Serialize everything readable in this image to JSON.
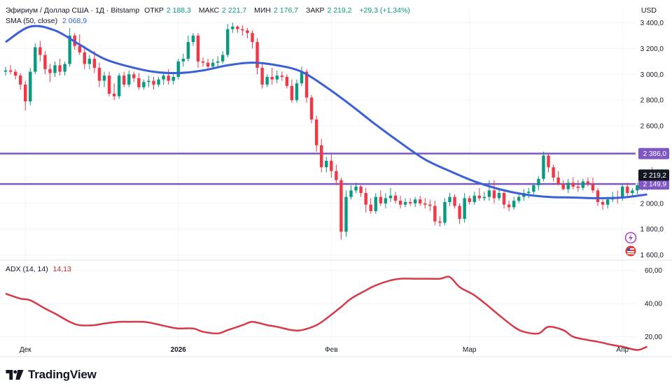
{
  "header": {
    "symbol": "Эфириум / Доллар США · 1Д · Bitstamp",
    "o_label": "ОТКР",
    "o_value": "2 188,3",
    "h_label": "МАКС",
    "h_value": "2 221,7",
    "l_label": "МИН",
    "l_value": "2 176,7",
    "c_label": "ЗАКР",
    "c_value": "2 219,2",
    "change": "+29,3 (+1,34%)",
    "currency": "USD"
  },
  "indicators": {
    "sma_label": "SMA (50, close)",
    "sma_value": "2 068,9",
    "adx_label": "ADX (14, 14)",
    "adx_value": "14,13"
  },
  "footer": {
    "brand": "TradingView"
  },
  "colors": {
    "up": "#089981",
    "down": "#f23645",
    "sma": "#3b5fd4",
    "adx": "#d63a48",
    "level": "#7e57c2",
    "last_price": "#131722",
    "grid": "#f0f3fa"
  },
  "chart_data": {
    "type": "candlestick",
    "title": "Эфириум / Доллар США · 1Д · Bitstamp",
    "currency": "USD",
    "ylim": [
      1560,
      3500
    ],
    "y_ticks": [
      1600,
      1800,
      2000,
      2200,
      2400,
      2600,
      2800,
      3000,
      3200,
      3400
    ],
    "y_tick_labels": [
      "1 600,0",
      "1 800,0",
      "2 000,0",
      "",
      "",
      "2 600,0",
      "2 800,0",
      "3 000,0",
      "3 200,0",
      "3 400,0"
    ],
    "x_ticks": [
      {
        "index": 4,
        "label": "Дек"
      },
      {
        "index": 35,
        "label": "2026"
      },
      {
        "index": 66,
        "label": "Фев"
      },
      {
        "index": 94,
        "label": "Мар"
      },
      {
        "index": 125,
        "label": "Апр"
      }
    ],
    "levels": [
      {
        "value": 2386.0,
        "label": "2 386,0"
      },
      {
        "value": 2149.9,
        "label": "2 149,9"
      }
    ],
    "last_price": {
      "value": 2219.2,
      "label": "2 219,2"
    },
    "ohlc": [
      [
        3020,
        3060,
        2990,
        3030
      ],
      [
        3030,
        3070,
        3000,
        3020
      ],
      [
        3020,
        3040,
        2960,
        2990
      ],
      [
        2990,
        3010,
        2880,
        2920
      ],
      [
        2920,
        2950,
        2720,
        2790
      ],
      [
        2790,
        3050,
        2760,
        3020
      ],
      [
        3020,
        3240,
        3000,
        3210
      ],
      [
        3210,
        3260,
        3100,
        3150
      ],
      [
        3150,
        3180,
        3000,
        3040
      ],
      [
        3040,
        3080,
        2940,
        3010
      ],
      [
        3010,
        3100,
        2980,
        3070
      ],
      [
        3070,
        3120,
        2990,
        3020
      ],
      [
        3020,
        3100,
        2990,
        3080
      ],
      [
        3080,
        3360,
        3060,
        3300
      ],
      [
        3300,
        3320,
        3190,
        3220
      ],
      [
        3220,
        3310,
        3150,
        3170
      ],
      [
        3170,
        3220,
        3040,
        3080
      ],
      [
        3080,
        3150,
        3040,
        3120
      ],
      [
        3120,
        3180,
        3010,
        3050
      ],
      [
        3050,
        3090,
        2900,
        2950
      ],
      [
        2950,
        3020,
        2900,
        2990
      ],
      [
        2990,
        3020,
        2830,
        2850
      ],
      [
        2850,
        2930,
        2800,
        2830
      ],
      [
        2830,
        3010,
        2810,
        2990
      ],
      [
        2990,
        3020,
        2900,
        2920
      ],
      [
        2920,
        3030,
        2900,
        3000
      ],
      [
        3000,
        3020,
        2940,
        2970
      ],
      [
        2970,
        3010,
        2880,
        2900
      ],
      [
        2900,
        2960,
        2880,
        2940
      ],
      [
        2940,
        2990,
        2900,
        2950
      ],
      [
        2950,
        2980,
        2880,
        2920
      ],
      [
        2920,
        2980,
        2900,
        2960
      ],
      [
        2960,
        3020,
        2920,
        2990
      ],
      [
        2990,
        3040,
        2920,
        2950
      ],
      [
        2950,
        3000,
        2920,
        2980
      ],
      [
        2980,
        3120,
        2960,
        3100
      ],
      [
        3100,
        3160,
        3060,
        3120
      ],
      [
        3120,
        3300,
        3100,
        3250
      ],
      [
        3250,
        3320,
        3220,
        3300
      ],
      [
        3300,
        3320,
        3050,
        3100
      ],
      [
        3100,
        3130,
        3060,
        3090
      ],
      [
        3090,
        3120,
        3040,
        3060
      ],
      [
        3060,
        3120,
        3050,
        3090
      ],
      [
        3090,
        3140,
        3050,
        3100
      ],
      [
        3100,
        3180,
        3080,
        3150
      ],
      [
        3150,
        3390,
        3130,
        3350
      ],
      [
        3350,
        3400,
        3320,
        3370
      ],
      [
        3370,
        3380,
        3320,
        3350
      ],
      [
        3350,
        3380,
        3300,
        3340
      ],
      [
        3340,
        3360,
        3280,
        3320
      ],
      [
        3320,
        3340,
        3200,
        3250
      ],
      [
        3250,
        3280,
        3000,
        3050
      ],
      [
        3050,
        3090,
        2890,
        2920
      ],
      [
        2920,
        3000,
        2900,
        2980
      ],
      [
        2980,
        3050,
        2920,
        2960
      ],
      [
        2960,
        3030,
        2930,
        2990
      ],
      [
        2990,
        3020,
        2950,
        2980
      ],
      [
        2980,
        3000,
        2890,
        2910
      ],
      [
        2910,
        2960,
        2780,
        2800
      ],
      [
        2800,
        2960,
        2780,
        2930
      ],
      [
        2930,
        3060,
        2910,
        3020
      ],
      [
        3020,
        3040,
        2780,
        2820
      ],
      [
        2820,
        2840,
        2620,
        2650
      ],
      [
        2650,
        2680,
        2400,
        2450
      ],
      [
        2450,
        2500,
        2240,
        2280
      ],
      [
        2280,
        2360,
        2240,
        2330
      ],
      [
        2330,
        2380,
        2200,
        2250
      ],
      [
        2250,
        2300,
        2140,
        2180
      ],
      [
        2180,
        2200,
        1720,
        1780
      ],
      [
        1780,
        2100,
        1740,
        2050
      ],
      [
        2050,
        2140,
        2030,
        2100
      ],
      [
        2100,
        2160,
        2080,
        2130
      ],
      [
        2130,
        2140,
        2050,
        2080
      ],
      [
        2080,
        2120,
        1930,
        1990
      ],
      [
        1990,
        2040,
        1920,
        1940
      ],
      [
        1940,
        2080,
        1920,
        2050
      ],
      [
        2050,
        2100,
        1980,
        2000
      ],
      [
        2000,
        2080,
        1960,
        2040
      ],
      [
        2040,
        2120,
        2010,
        2060
      ],
      [
        2060,
        2090,
        2000,
        2020
      ],
      [
        2020,
        2060,
        1960,
        1990
      ],
      [
        1990,
        2040,
        1970,
        2010
      ],
      [
        2010,
        2040,
        1980,
        2000
      ],
      [
        2000,
        2050,
        1970,
        2030
      ],
      [
        2030,
        2060,
        1980,
        2000
      ],
      [
        2000,
        2040,
        1960,
        1990
      ],
      [
        1990,
        2030,
        1940,
        1980
      ],
      [
        1980,
        2020,
        1830,
        1860
      ],
      [
        1860,
        1900,
        1820,
        1850
      ],
      [
        1850,
        2040,
        1830,
        2010
      ],
      [
        2010,
        2080,
        1980,
        2050
      ],
      [
        2050,
        2070,
        1960,
        1980
      ],
      [
        1980,
        2000,
        1840,
        1880
      ],
      [
        1880,
        2080,
        1850,
        2040
      ],
      [
        2040,
        2060,
        1990,
        2010
      ],
      [
        2010,
        2090,
        1990,
        2060
      ],
      [
        2060,
        2120,
        2020,
        2040
      ],
      [
        2040,
        2090,
        2020,
        2050
      ],
      [
        2050,
        2180,
        2020,
        2100
      ],
      [
        2100,
        2180,
        2000,
        2040
      ],
      [
        2040,
        2110,
        2020,
        2080
      ],
      [
        2080,
        2110,
        1960,
        1990
      ],
      [
        1990,
        2020,
        1940,
        1970
      ],
      [
        1970,
        2050,
        1950,
        2020
      ],
      [
        2020,
        2080,
        2000,
        2050
      ],
      [
        2050,
        2110,
        2020,
        2080
      ],
      [
        2080,
        2120,
        2040,
        2090
      ],
      [
        2090,
        2150,
        2070,
        2140
      ],
      [
        2140,
        2210,
        2100,
        2190
      ],
      [
        2190,
        2400,
        2170,
        2370
      ],
      [
        2370,
        2380,
        2240,
        2280
      ],
      [
        2280,
        2300,
        2170,
        2200
      ],
      [
        2200,
        2250,
        2140,
        2150
      ],
      [
        2150,
        2180,
        2100,
        2110
      ],
      [
        2110,
        2190,
        2080,
        2160
      ],
      [
        2160,
        2200,
        2110,
        2130
      ],
      [
        2130,
        2180,
        2090,
        2120
      ],
      [
        2120,
        2190,
        2100,
        2170
      ],
      [
        2170,
        2200,
        2130,
        2150
      ],
      [
        2150,
        2200,
        2080,
        2100
      ],
      [
        2100,
        2120,
        1980,
        2010
      ],
      [
        2010,
        2030,
        1950,
        1990
      ],
      [
        1990,
        2050,
        1960,
        2030
      ],
      [
        2030,
        2090,
        2010,
        2050
      ],
      [
        2050,
        2100,
        2000,
        2040
      ],
      [
        2040,
        2150,
        2020,
        2130
      ],
      [
        2130,
        2160,
        2060,
        2080
      ],
      [
        2080,
        2120,
        2060,
        2100
      ],
      [
        2100,
        2160,
        2070,
        2140
      ],
      [
        2140,
        2170,
        2100,
        2120
      ],
      [
        2120,
        2260,
        2100,
        2240
      ],
      [
        2240,
        2280,
        2170,
        2200
      ],
      [
        2200,
        2260,
        2170,
        2188.3
      ],
      [
        2188.3,
        2221.7,
        2176.7,
        2219.2
      ]
    ],
    "sma": {
      "name": "SMA (50, close)",
      "points": [
        [
          0,
          3250
        ],
        [
          5,
          3370
        ],
        [
          10,
          3340
        ],
        [
          15,
          3230
        ],
        [
          20,
          3120
        ],
        [
          25,
          3060
        ],
        [
          30,
          3020
        ],
        [
          35,
          3010
        ],
        [
          40,
          3030
        ],
        [
          45,
          3070
        ],
        [
          50,
          3090
        ],
        [
          55,
          3070
        ],
        [
          60,
          3020
        ],
        [
          65,
          2900
        ],
        [
          70,
          2760
        ],
        [
          75,
          2610
        ],
        [
          80,
          2470
        ],
        [
          85,
          2340
        ],
        [
          90,
          2250
        ],
        [
          95,
          2170
        ],
        [
          100,
          2110
        ],
        [
          105,
          2070
        ],
        [
          110,
          2050
        ],
        [
          115,
          2045
        ],
        [
          120,
          2040
        ],
        [
          125,
          2045
        ],
        [
          130,
          2069
        ]
      ]
    },
    "adx": {
      "name": "ADX (14, 14)",
      "ylim": [
        8,
        62
      ],
      "y_ticks": [
        20,
        40,
        60
      ],
      "y_tick_labels": [
        "20,00",
        "40,00",
        "60,00"
      ],
      "points": [
        [
          0,
          46
        ],
        [
          3,
          43
        ],
        [
          5,
          42
        ],
        [
          8,
          37
        ],
        [
          10,
          34
        ],
        [
          13,
          29
        ],
        [
          15,
          27
        ],
        [
          18,
          27
        ],
        [
          20,
          28
        ],
        [
          23,
          29
        ],
        [
          25,
          29
        ],
        [
          28,
          29
        ],
        [
          30,
          28
        ],
        [
          33,
          26
        ],
        [
          35,
          25
        ],
        [
          38,
          25
        ],
        [
          40,
          23
        ],
        [
          43,
          22
        ],
        [
          45,
          24
        ],
        [
          48,
          27
        ],
        [
          50,
          29
        ],
        [
          53,
          27
        ],
        [
          55,
          26
        ],
        [
          58,
          24
        ],
        [
          60,
          24
        ],
        [
          63,
          27
        ],
        [
          65,
          31
        ],
        [
          68,
          38
        ],
        [
          70,
          43
        ],
        [
          73,
          48
        ],
        [
          75,
          51
        ],
        [
          78,
          54
        ],
        [
          80,
          55
        ],
        [
          83,
          55
        ],
        [
          85,
          55
        ],
        [
          88,
          55
        ],
        [
          90,
          56
        ],
        [
          92,
          50
        ],
        [
          95,
          45
        ],
        [
          98,
          38
        ],
        [
          100,
          33
        ],
        [
          103,
          26
        ],
        [
          105,
          23
        ],
        [
          108,
          22
        ],
        [
          110,
          26
        ],
        [
          113,
          24
        ],
        [
          115,
          20
        ],
        [
          118,
          18
        ],
        [
          120,
          17
        ],
        [
          123,
          15
        ],
        [
          125,
          14
        ],
        [
          128,
          12
        ],
        [
          130,
          14
        ]
      ]
    }
  }
}
